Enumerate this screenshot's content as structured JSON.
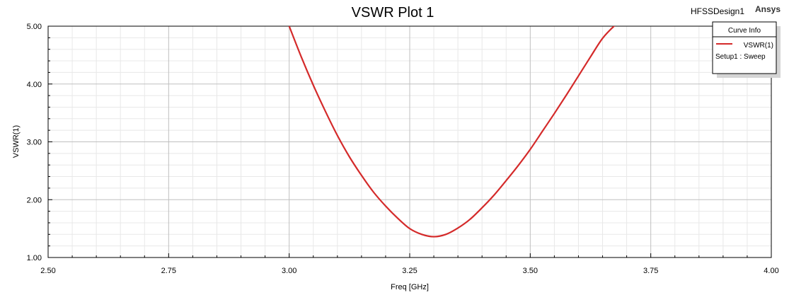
{
  "design_name": "HFSSDesign1",
  "brand": "Ansys",
  "legend": {
    "title": "Curve Info",
    "entry_name": "VSWR(1)",
    "entry_sub": "Setup1 : Sweep"
  },
  "chart_data": {
    "type": "line",
    "title": "VSWR Plot 1",
    "xlabel": "Freq [GHz]",
    "ylabel": "VSWR(1)",
    "xlim": [
      2.5,
      4.0
    ],
    "ylim": [
      1.0,
      5.0
    ],
    "x_ticks": [
      "2.50",
      "2.75",
      "3.00",
      "3.25",
      "3.50",
      "3.75",
      "4.00"
    ],
    "y_ticks": [
      "1.00",
      "2.00",
      "3.00",
      "4.00",
      "5.00"
    ],
    "grid": true,
    "legend_position": "top-right",
    "series": [
      {
        "name": "VSWR(1)",
        "color": "#d42a2a",
        "x": [
          3.0,
          3.025,
          3.05,
          3.075,
          3.1,
          3.125,
          3.15,
          3.175,
          3.2,
          3.225,
          3.25,
          3.275,
          3.3,
          3.325,
          3.35,
          3.375,
          3.4,
          3.425,
          3.45,
          3.475,
          3.5,
          3.525,
          3.55,
          3.575,
          3.6,
          3.625,
          3.65,
          3.675,
          3.685
        ],
        "y": [
          5.0,
          4.47,
          3.98,
          3.53,
          3.11,
          2.74,
          2.42,
          2.13,
          1.89,
          1.68,
          1.5,
          1.4,
          1.36,
          1.4,
          1.51,
          1.66,
          1.86,
          2.08,
          2.33,
          2.59,
          2.87,
          3.18,
          3.49,
          3.81,
          4.14,
          4.47,
          4.79,
          5.01,
          5.06
        ]
      }
    ]
  }
}
